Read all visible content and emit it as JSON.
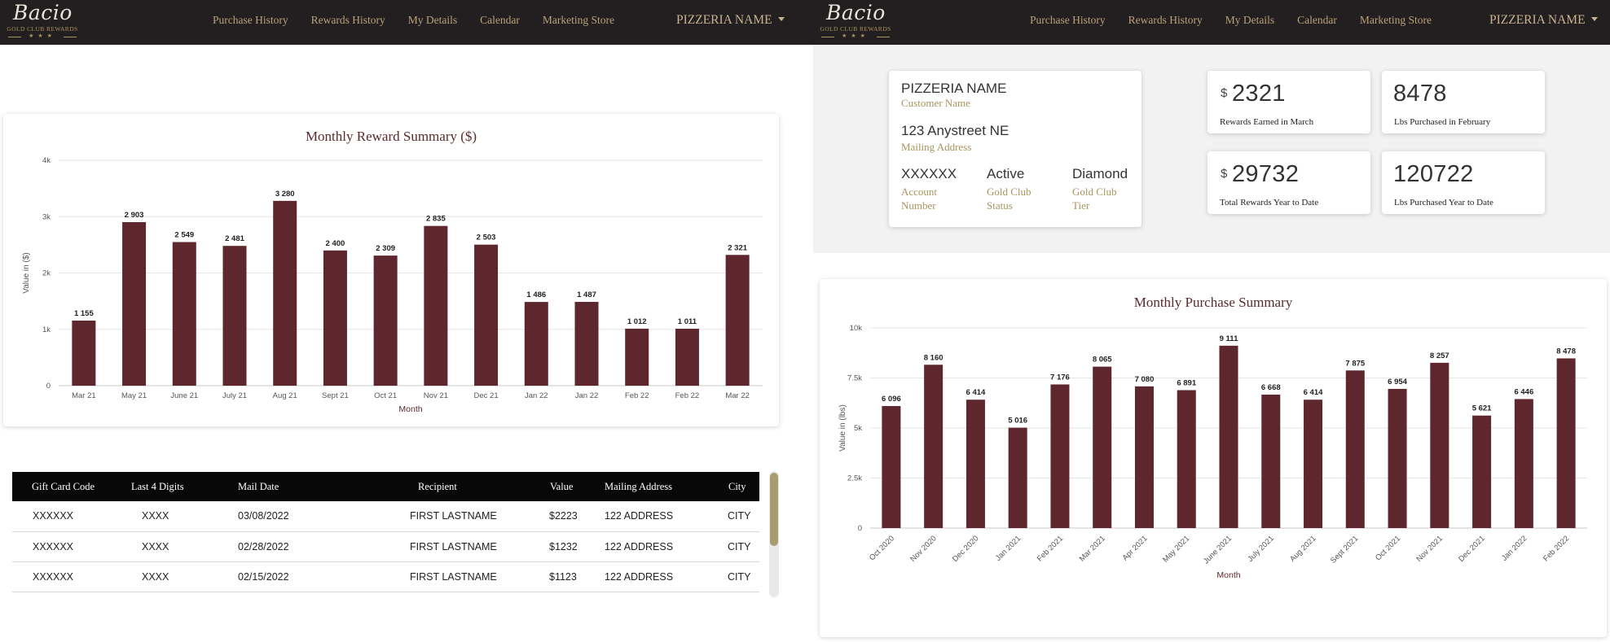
{
  "brand": {
    "script": "Bacio",
    "subtitle": "GOLD CLUB REWARDS",
    "stars": "★★★",
    "accent_color": "#a8945e",
    "bar_color": "#5e262d"
  },
  "nav": {
    "links": [
      "Purchase History",
      "Rewards History",
      "My Details",
      "Calendar",
      "Marketing Store"
    ],
    "account": "PIZZERIA NAME"
  },
  "reward_chart": {
    "chart_data": {
      "type": "bar",
      "title": "Monthly Reward Summary ($)",
      "xlabel": "Month",
      "ylabel": "Value in ($)",
      "ylim": [
        0,
        4000
      ],
      "yticks": [
        "0",
        "1k",
        "2k",
        "3k",
        "4k"
      ],
      "categories": [
        "Mar 21",
        "May 21",
        "June 21",
        "July 21",
        "Aug 21",
        "Sept 21",
        "Oct 21",
        "Nov 21",
        "Dec 21",
        "Jan 22",
        "Jan 22",
        "Feb 22",
        "Feb 22",
        "Mar 22"
      ],
      "values": [
        1155,
        2903,
        2549,
        2481,
        3280,
        2400,
        2309,
        2835,
        2503,
        1486,
        1487,
        1012,
        1011,
        2321
      ],
      "labels": [
        "1 155",
        "2 903",
        "2 549",
        "2 481",
        "3 280",
        "2 400",
        "2 309",
        "2 835",
        "2 503",
        "1 486",
        "1 487",
        "1 012",
        "1 011",
        "2 321"
      ],
      "grid": true
    }
  },
  "gift_table": {
    "columns": [
      "Gift Card Code",
      "Last 4 Digits",
      "Mail Date",
      "Recipient",
      "Value",
      "Mailing Address",
      "City"
    ],
    "rows": [
      [
        "XXXXXX",
        "XXXX",
        "03/08/2022",
        "FIRST LASTNAME",
        "$2223",
        "122 ADDRESS",
        "CITY"
      ],
      [
        "XXXXXX",
        "XXXX",
        "02/28/2022",
        "FIRST LASTNAME",
        "$1232",
        "122 ADDRESS",
        "CITY"
      ],
      [
        "XXXXXX",
        "XXXX",
        "02/15/2022",
        "FIRST LASTNAME",
        "$1123",
        "122 ADDRESS",
        "CITY"
      ]
    ]
  },
  "account_info": {
    "name": "PIZZERIA NAME",
    "name_label": "Customer Name",
    "address": "123 Anystreet NE",
    "address_label": "Mailing Address",
    "account_number": "XXXXXX",
    "account_number_label_1": "Account",
    "account_number_label_2": "Number",
    "status": "Active",
    "status_label_1": "Gold Club",
    "status_label_2": "Status",
    "tier": "Diamond",
    "tier_label_1": "Gold Club",
    "tier_label_2": "Tier"
  },
  "stats": [
    {
      "currency": "$",
      "value": "2321",
      "label": "Rewards Earned in March"
    },
    {
      "currency": "",
      "value": "8478",
      "label": "Lbs Purchased in February"
    },
    {
      "currency": "$",
      "value": "29732",
      "label": "Total Rewards Year to Date"
    },
    {
      "currency": "",
      "value": "120722",
      "label": "Lbs Purchased Year to Date"
    }
  ],
  "purchase_chart": {
    "chart_data": {
      "type": "bar",
      "title": "Monthly Purchase Summary",
      "xlabel": "Month",
      "ylabel": "Value in (lbs)",
      "ylim": [
        0,
        10000
      ],
      "yticks": [
        "0",
        "2.5k",
        "5k",
        "7.5k",
        "10k"
      ],
      "categories": [
        "Oct 2020",
        "Nov 2020",
        "Dec 2020",
        "Jan 2021",
        "Feb 2021",
        "Mar 2021",
        "Apr 2021",
        "May 2021",
        "June 2021",
        "July 2021",
        "Aug 2021",
        "Sept 2021",
        "Oct 2021",
        "Nov 2021",
        "Dec 2021",
        "Jan 2022",
        "Feb 2022"
      ],
      "values": [
        6096,
        8160,
        6414,
        5016,
        7176,
        8065,
        7080,
        6891,
        9111,
        6668,
        6414,
        7875,
        6954,
        8257,
        5621,
        6446,
        8478
      ],
      "labels": [
        "6 096",
        "8 160",
        "6 414",
        "5 016",
        "7 176",
        "8 065",
        "7 080",
        "6 891",
        "9 111",
        "6 668",
        "6 414",
        "7 875",
        "6 954",
        "8 257",
        "5 621",
        "6 446",
        "8 478"
      ],
      "grid": true
    }
  }
}
